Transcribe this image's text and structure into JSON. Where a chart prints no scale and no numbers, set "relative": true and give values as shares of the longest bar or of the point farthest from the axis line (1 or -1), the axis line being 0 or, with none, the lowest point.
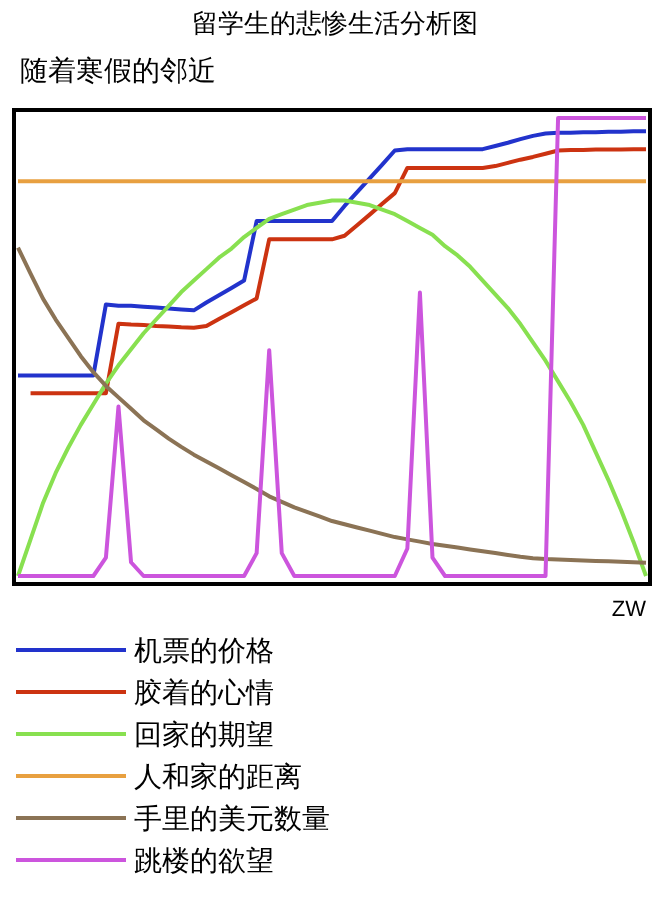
{
  "chart_data": {
    "type": "line",
    "title": "留学生的悲惨生活分析图",
    "subtitle": "随着寒假的邻近",
    "annotations": [
      "ZW"
    ],
    "relative": true,
    "legend": "bottom",
    "line_style": "solid",
    "categories": [
      null,
      null,
      null,
      null,
      null,
      null,
      null,
      null,
      null,
      null,
      null,
      null,
      null,
      null,
      null,
      null,
      null,
      null,
      null,
      null,
      null,
      null,
      null,
      null,
      null,
      null,
      null,
      null,
      null,
      null,
      null,
      null,
      null,
      null,
      null,
      null,
      null,
      null,
      null,
      null,
      null,
      null,
      null,
      null,
      null,
      null,
      null,
      null,
      null,
      null,
      null
    ],
    "series": [
      {
        "name": "机票的价格",
        "color": "#2233cc",
        "values": [
          0.438,
          0.438,
          0.438,
          0.438,
          0.438,
          0.438,
          0.438,
          0.593,
          0.59,
          0.59,
          0.588,
          0.586,
          0.584,
          0.582,
          0.58,
          0.597,
          0.613,
          0.629,
          0.645,
          0.775,
          0.775,
          0.775,
          0.775,
          0.775,
          0.775,
          0.775,
          0.808,
          0.838,
          0.868,
          0.898,
          0.929,
          0.932,
          0.932,
          0.932,
          0.932,
          0.932,
          0.932,
          0.932,
          0.939,
          0.946,
          0.954,
          0.961,
          0.966,
          0.968,
          0.968,
          0.969,
          0.969,
          0.97,
          0.97,
          0.971,
          0.971
        ]
      },
      {
        "name": "胶着的心情",
        "color": "#cc3311",
        "values": [
          null,
          0.399,
          0.399,
          0.399,
          0.399,
          0.399,
          0.399,
          0.399,
          0.551,
          0.549,
          0.548,
          0.546,
          0.545,
          0.543,
          0.542,
          0.546,
          0.561,
          0.576,
          0.591,
          0.606,
          0.735,
          0.735,
          0.735,
          0.735,
          0.735,
          0.735,
          0.743,
          0.766,
          0.789,
          0.813,
          0.836,
          0.891,
          0.891,
          0.891,
          0.891,
          0.891,
          0.891,
          0.891,
          0.895,
          0.902,
          0.909,
          0.915,
          0.922,
          0.929,
          0.93,
          0.93,
          0.931,
          0.931,
          0.931,
          0.932,
          0.932
        ]
      },
      {
        "name": "回家的期望",
        "color": "#88e050",
        "values": [
          0,
          0.08,
          0.16,
          0.225,
          0.28,
          0.33,
          0.375,
          0.42,
          0.46,
          0.495,
          0.53,
          0.56,
          0.59,
          0.62,
          0.645,
          0.67,
          0.695,
          0.715,
          0.74,
          0.76,
          0.78,
          0.79,
          0.8,
          0.81,
          0.815,
          0.82,
          0.82,
          0.815,
          0.81,
          0.8,
          0.79,
          0.775,
          0.76,
          0.745,
          0.72,
          0.7,
          0.675,
          0.645,
          0.615,
          0.585,
          0.55,
          0.51,
          0.47,
          0.425,
          0.38,
          0.33,
          0.27,
          0.21,
          0.145,
          0.075,
          0
        ]
      },
      {
        "name": "人和家的距离",
        "color": "#e8a040",
        "values": [
          0.862,
          0.862,
          0.862,
          0.862,
          0.862,
          0.862,
          0.862,
          0.862,
          0.862,
          0.862,
          0.862,
          0.862,
          0.862,
          0.862,
          0.862,
          0.862,
          0.862,
          0.862,
          0.862,
          0.862,
          0.862,
          0.862,
          0.862,
          0.862,
          0.862,
          0.862,
          0.862,
          0.862,
          0.862,
          0.862,
          0.862,
          0.862,
          0.862,
          0.862,
          0.862,
          0.862,
          0.862,
          0.862,
          0.862,
          0.862,
          0.862,
          0.862,
          0.862,
          0.862,
          0.862,
          0.862,
          0.862,
          0.862,
          0.862,
          0.862,
          0.862
        ]
      },
      {
        "name": "手里的美元数量",
        "color": "#8b7355",
        "values": [
          0.717,
          0.66,
          0.605,
          0.56,
          0.52,
          0.48,
          0.445,
          0.415,
          0.39,
          0.365,
          0.34,
          0.32,
          0.3,
          0.282,
          0.265,
          0.25,
          0.235,
          0.22,
          0.205,
          0.19,
          0.174,
          0.162,
          0.15,
          0.14,
          0.13,
          0.12,
          0.113,
          0.106,
          0.099,
          0.092,
          0.085,
          0.08,
          0.075,
          0.07,
          0.066,
          0.062,
          0.058,
          0.054,
          0.05,
          0.046,
          0.042,
          0.039,
          0.037,
          0.036,
          0.035,
          0.034,
          0.033,
          0.032,
          0.031,
          0.03,
          0.029
        ]
      },
      {
        "name": "跳楼的欲望",
        "color": "#cc55dd",
        "values": [
          0,
          0,
          0,
          0,
          0,
          0,
          0,
          0.04,
          0.37,
          0.03,
          0,
          0,
          0,
          0,
          0,
          0,
          0,
          0,
          0,
          0.05,
          0.493,
          0.05,
          0,
          0,
          0,
          0,
          0,
          0,
          0,
          0,
          0,
          0.06,
          0.619,
          0.04,
          0,
          0,
          0,
          0,
          0,
          0,
          0,
          0,
          0,
          1,
          1,
          1,
          1,
          1,
          1,
          1,
          1
        ]
      }
    ]
  }
}
